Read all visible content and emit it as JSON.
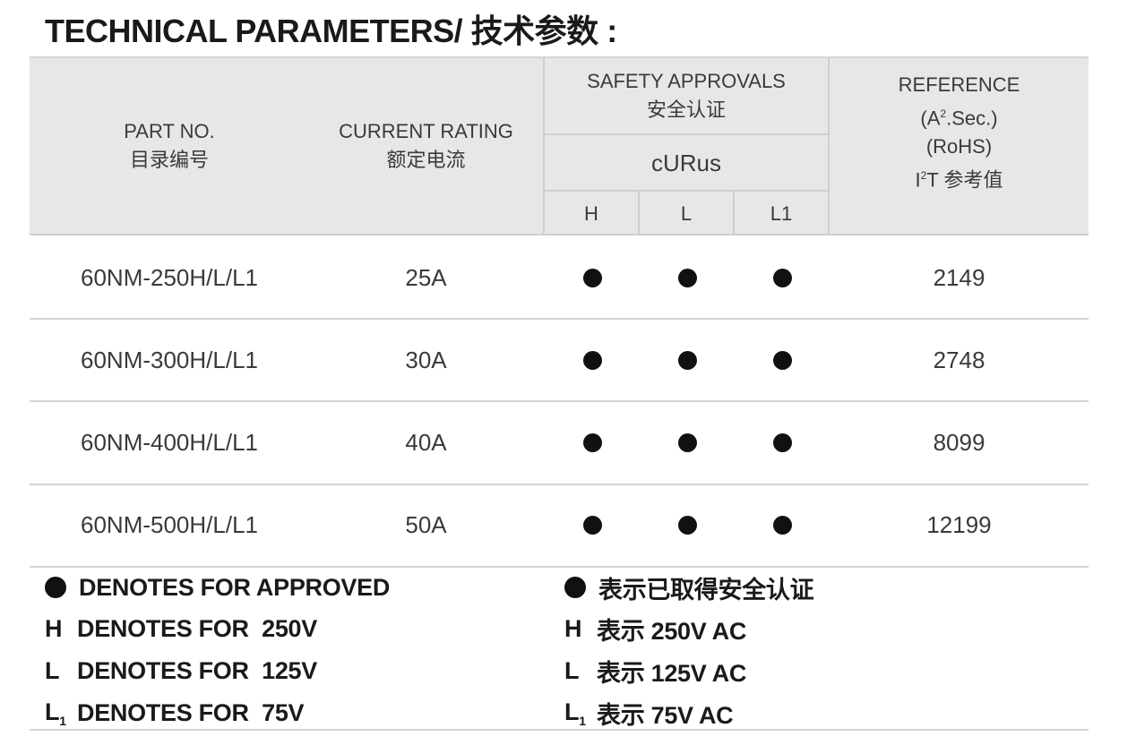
{
  "title": "TECHNICAL PARAMETERS/ 技术参数 :",
  "header": {
    "part_no": "PART  NO.",
    "part_no_cn": "目录编号",
    "current": "CURRENT  RATING",
    "current_cn": "额定电流",
    "safety": "SAFETY APPROVALS",
    "safety_cn": "安全认证",
    "curus": "cURus",
    "sub": [
      "H",
      "L",
      "L1"
    ],
    "ref1": "REFERENCE",
    "ref2a": "(A",
    "ref2sup": "2",
    "ref2b": ".Sec.)",
    "ref3": "(RoHS)",
    "ref4a": "I",
    "ref4sup": "2",
    "ref4b": "T 参考值"
  },
  "rows": [
    {
      "part": "60NM-250H/L/L1",
      "current": "25A",
      "approved": [
        true,
        true,
        true
      ],
      "ref": "2149"
    },
    {
      "part": "60NM-300H/L/L1",
      "current": "30A",
      "approved": [
        true,
        true,
        true
      ],
      "ref": "2748"
    },
    {
      "part": "60NM-400H/L/L1",
      "current": "40A",
      "approved": [
        true,
        true,
        true
      ],
      "ref": "8099"
    },
    {
      "part": "60NM-500H/L/L1",
      "current": "50A",
      "approved": [
        true,
        true,
        true
      ],
      "ref": "12199"
    }
  ],
  "legend": {
    "en": [
      {
        "key": "",
        "text": "DENOTES FOR APPROVED"
      },
      {
        "key": "H",
        "text": "DENOTES FOR  250V"
      },
      {
        "key": "L",
        "text": "DENOTES FOR  125V"
      },
      {
        "key": "L",
        "sub": "1",
        "text": "DENOTES FOR  75V"
      }
    ],
    "cn": [
      {
        "key": "",
        "text": "表示已取得安全认证"
      },
      {
        "key": "H",
        "text": "表示 250V AC"
      },
      {
        "key": "L",
        "text": "表示 125V AC"
      },
      {
        "key": "L",
        "sub": "1",
        "text": "表示 75V AC"
      }
    ]
  }
}
